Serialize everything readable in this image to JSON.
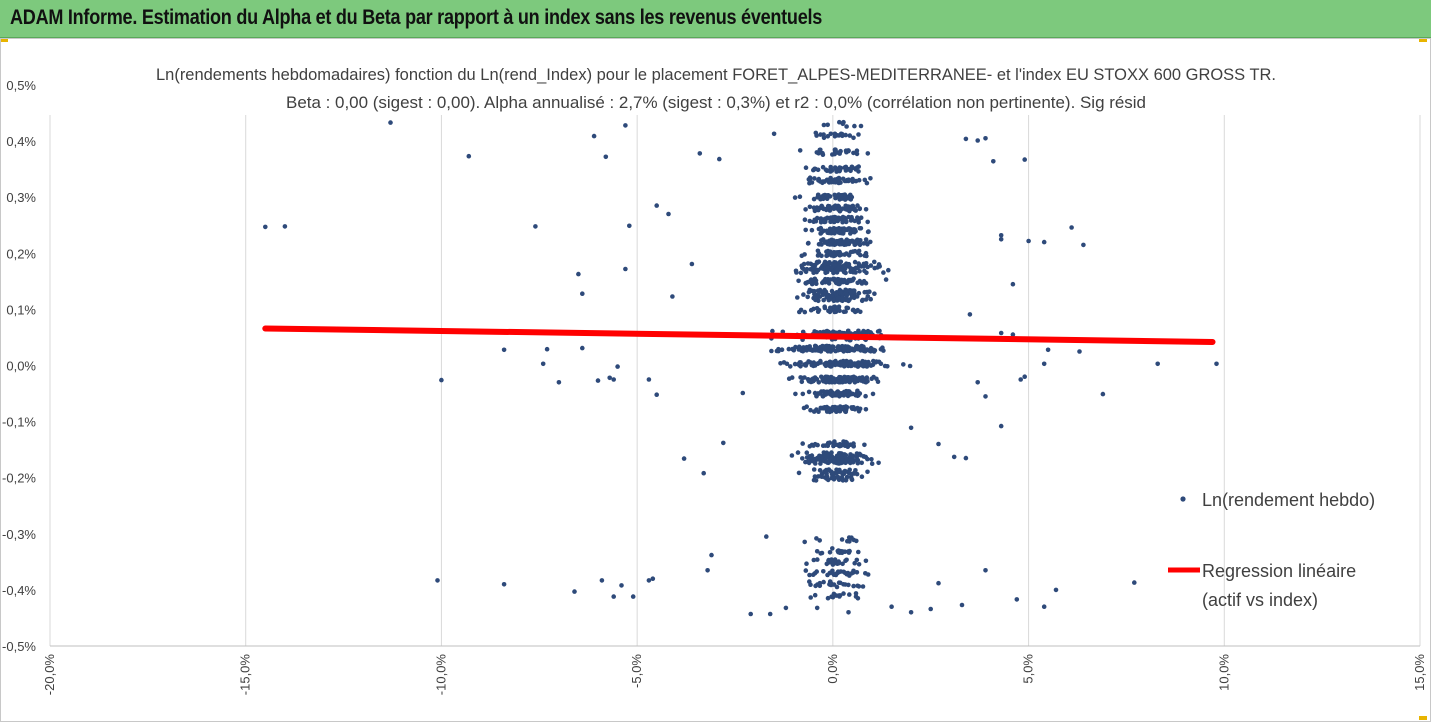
{
  "header": {
    "title": "ADAM Informe. Estimation du Alpha et du Beta par rapport à un index sans les revenus éventuels"
  },
  "chart_data": {
    "type": "scatter",
    "title_line1": "Ln(rendements hebdomadaires) fonction du Ln(rend_Index) pour le placement FORET_ALPES-MEDITERRANEE- et l'index EU STOXX 600 GROSS TR.",
    "title_line2": "Beta : 0,00 (sigest : 0,00). Alpha annualisé : 2,7% (sigest : 0,3%) et r2 : 0,0% (corrélation non pertinente). Sig résid",
    "xlabel": "",
    "ylabel": "",
    "xlim": [
      -0.2,
      0.15
    ],
    "ylim": [
      -0.005,
      0.005
    ],
    "x_ticks": [
      "-20,0%",
      "-15,0%",
      "-10,0%",
      "-5,0%",
      "0,0%",
      "5,0%",
      "10,0%",
      "15,0%"
    ],
    "y_ticks": [
      "0,5%",
      "0,4%",
      "0,3%",
      "0,2%",
      "0,1%",
      "0,0%",
      "-0,1%",
      "-0,2%",
      "-0,3%",
      "-0,4%",
      "-0,5%"
    ],
    "grid": "vertical",
    "legend_position": "right",
    "series": [
      {
        "name": "Ln(rendement hebdo)",
        "kind": "points",
        "color": "#2e4a7a",
        "points": [
          [
            -0.145,
            0.00247
          ],
          [
            -0.14,
            0.00248
          ],
          [
            -0.113,
            0.00433
          ],
          [
            -0.093,
            0.00373
          ],
          [
            -0.076,
            0.00248
          ],
          [
            -0.061,
            0.00409
          ],
          [
            -0.058,
            0.00372
          ],
          [
            -0.053,
            0.00428
          ],
          [
            -0.045,
            0.00285
          ],
          [
            -0.052,
            0.00249
          ],
          [
            -0.065,
            0.00163
          ],
          [
            -0.064,
            0.00128
          ],
          [
            -0.053,
            0.00172
          ],
          [
            -0.042,
            0.0027
          ],
          [
            -0.041,
            0.00123
          ],
          [
            -0.036,
            0.00181
          ],
          [
            -0.034,
            0.00378
          ],
          [
            -0.029,
            0.00368
          ],
          [
            -0.015,
            0.00413
          ],
          [
            -0.1,
            -0.00026
          ],
          [
            -0.084,
            0.00028
          ],
          [
            -0.073,
            0.00029
          ],
          [
            -0.074,
            3e-05
          ],
          [
            -0.07,
            -0.0003
          ],
          [
            -0.06,
            -0.00027
          ],
          [
            -0.057,
            -0.00022
          ],
          [
            -0.064,
            0.00031
          ],
          [
            -0.055,
            -2e-05
          ],
          [
            -0.056,
            -0.00025
          ],
          [
            -0.047,
            -0.00025
          ],
          [
            -0.045,
            -0.00052
          ],
          [
            -0.023,
            -0.00049
          ],
          [
            -0.038,
            -0.00166
          ],
          [
            -0.033,
            -0.00192
          ],
          [
            -0.028,
            -0.00138
          ],
          [
            -0.101,
            -0.00383
          ],
          [
            -0.084,
            -0.0039
          ],
          [
            -0.066,
            -0.00403
          ],
          [
            -0.059,
            -0.00383
          ],
          [
            -0.056,
            -0.00412
          ],
          [
            -0.054,
            -0.00392
          ],
          [
            -0.051,
            -0.00412
          ],
          [
            -0.046,
            -0.0038
          ],
          [
            -0.047,
            -0.00383
          ],
          [
            -0.032,
            -0.00365
          ],
          [
            -0.031,
            -0.00338
          ],
          [
            -0.021,
            -0.00443
          ],
          [
            -0.016,
            -0.00443
          ],
          [
            -0.017,
            -0.00305
          ],
          [
            -0.012,
            -0.00432
          ],
          [
            -0.004,
            -0.00432
          ],
          [
            0.004,
            -0.0044
          ],
          [
            0.015,
            -0.0043
          ],
          [
            0.02,
            -0.0044
          ],
          [
            0.025,
            -0.00434
          ],
          [
            0.033,
            -0.00427
          ],
          [
            0.047,
            -0.00417
          ],
          [
            0.057,
            -0.004
          ],
          [
            0.054,
            -0.0043
          ],
          [
            0.077,
            -0.00387
          ],
          [
            0.039,
            -0.00365
          ],
          [
            0.027,
            -0.00388
          ],
          [
            0.02,
            -0.00111
          ],
          [
            0.031,
            -0.00163
          ],
          [
            0.034,
            -0.00165
          ],
          [
            0.027,
            -0.0014
          ],
          [
            0.043,
            -0.00108
          ],
          [
            0.039,
            -0.00055
          ],
          [
            0.037,
            -0.0003
          ],
          [
            0.048,
            -0.00025
          ],
          [
            0.049,
            -0.0002
          ],
          [
            0.054,
            3e-05
          ],
          [
            0.055,
            0.00028
          ],
          [
            0.063,
            0.00025
          ],
          [
            0.061,
            0.00246
          ],
          [
            0.064,
            0.00215
          ],
          [
            0.069,
            -0.00051
          ],
          [
            0.083,
            3e-05
          ],
          [
            0.098,
            3e-05
          ],
          [
            0.05,
            0.00222
          ],
          [
            0.054,
            0.0022
          ],
          [
            0.049,
            0.00367
          ],
          [
            0.043,
            0.00232
          ],
          [
            0.043,
            0.00225
          ],
          [
            0.037,
            0.00401
          ],
          [
            0.039,
            0.00405
          ],
          [
            0.034,
            0.00404
          ],
          [
            0.041,
            0.00364
          ],
          [
            0.046,
            0.00145
          ],
          [
            0.043,
            0.00058
          ],
          [
            0.046,
            0.00055
          ],
          [
            0.035,
            0.00091
          ]
        ]
      },
      {
        "name": "Regression linéaire (actif vs index)",
        "kind": "line",
        "color": "#ff0000",
        "points": [
          [
            -0.145,
            0.00066
          ],
          [
            0.097,
            0.00042
          ]
        ]
      }
    ]
  },
  "legend": {
    "series1_label": "Ln(rendement hebdo)",
    "series2_line1": "Regression linéaire",
    "series2_line2": "(actif vs index)"
  }
}
